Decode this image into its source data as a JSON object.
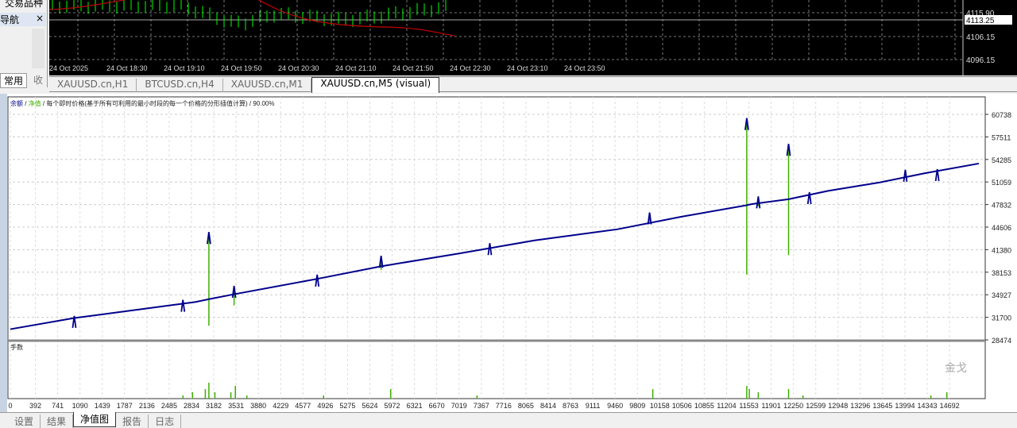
{
  "left_panel": {
    "symbols_title": "交易品种",
    "navigator_title": "导航",
    "close": "×",
    "tab_common": "常用",
    "tab_fav": "收"
  },
  "price_chart": {
    "price_labels": [
      "4115.90",
      "4106.15",
      "4096.15"
    ],
    "current_price": "4113.25",
    "time_labels": [
      "24 Oct 2025",
      "24 Oct 18:30",
      "24 Oct 19:10",
      "24 Oct 19:50",
      "24 Oct 20:30",
      "24 Oct 21:10",
      "24 Oct 21:50",
      "24 Oct 22:30",
      "24 Oct 23:10",
      "24 Oct 23:50"
    ],
    "candle_color": "#00ff00",
    "ma_color": "#c00000"
  },
  "chart_tabs": [
    {
      "label": "XAUUSD.cn,H1"
    },
    {
      "label": "BTCUSD.cn,H4"
    },
    {
      "label": "XAUUSD.cn,M1"
    },
    {
      "label": "XAUUSD.cn,M5 (visual)",
      "active": true
    }
  ],
  "equity_header": {
    "balance": "余额",
    "sep1": " / ",
    "equity": "净值",
    "sep2": " / ",
    "mode": "每个即时价格(基于所有可利用的最小时段的每一个价格的分形插值计算)",
    "sep3": " / ",
    "quality": "90.00%"
  },
  "lots_label": "手数",
  "watermark": "金戈",
  "bottom_tabs": [
    {
      "label": "设置"
    },
    {
      "label": "结果"
    },
    {
      "label": "净值图",
      "active": true
    },
    {
      "label": "报告"
    },
    {
      "label": "日志"
    }
  ],
  "chart_data": {
    "type": "line",
    "xlim": [
      0,
      15250
    ],
    "ylim": [
      28474,
      60738
    ],
    "y_ticks": [
      60738,
      57511,
      54285,
      51059,
      47832,
      44606,
      41380,
      38153,
      34927,
      31700,
      28474
    ],
    "x_ticks": [
      0,
      392,
      741,
      1090,
      1439,
      1787,
      2136,
      2485,
      2834,
      3182,
      3531,
      3880,
      4229,
      4577,
      4926,
      5275,
      5624,
      5972,
      6321,
      6670,
      7019,
      7367,
      7716,
      8065,
      8414,
      8763,
      9111,
      9460,
      9809,
      10158,
      10506,
      10855,
      11204,
      11553,
      11901,
      12250,
      12599,
      12948,
      13296,
      13645,
      13994,
      14343,
      14692
    ],
    "grid": true,
    "balance_color": "#00008b",
    "equity_color": "#3cb000",
    "series": [
      {
        "name": "余额",
        "values": [
          [
            0,
            30000
          ],
          [
            1000,
            31600
          ],
          [
            2000,
            32800
          ],
          [
            2900,
            33900
          ],
          [
            3106,
            34300
          ],
          [
            3500,
            35000
          ],
          [
            4800,
            37200
          ],
          [
            5800,
            39000
          ],
          [
            7000,
            40800
          ],
          [
            8200,
            42700
          ],
          [
            9500,
            44300
          ],
          [
            10500,
            46100
          ],
          [
            11500,
            47700
          ],
          [
            11600,
            47900
          ],
          [
            12174,
            48600
          ],
          [
            12800,
            49800
          ],
          [
            13600,
            51000
          ],
          [
            14300,
            52300
          ],
          [
            15150,
            53700
          ]
        ]
      },
      {
        "name": "净值",
        "spikes": [
          [
            1000,
            31900,
            31400
          ],
          [
            2700,
            34200,
            33500
          ],
          [
            3106,
            43900,
            30500
          ],
          [
            3500,
            36200,
            33400
          ],
          [
            4800,
            37800,
            36900
          ],
          [
            5800,
            40500,
            38500
          ],
          [
            7500,
            42300,
            41700
          ],
          [
            10000,
            46700,
            45400
          ],
          [
            11520,
            60200,
            37800
          ],
          [
            11700,
            49000,
            47600
          ],
          [
            12174,
            56500,
            40600
          ],
          [
            12500,
            49600,
            49100
          ],
          [
            14000,
            52800,
            52200
          ],
          [
            14500,
            52900,
            52300
          ]
        ]
      }
    ],
    "lots": [
      [
        2700,
        1
      ],
      [
        2850,
        2
      ],
      [
        3050,
        3
      ],
      [
        3106,
        5
      ],
      [
        3200,
        2
      ],
      [
        3450,
        2
      ],
      [
        3520,
        4
      ],
      [
        3700,
        1
      ],
      [
        4900,
        1
      ],
      [
        5950,
        3
      ],
      [
        7300,
        1
      ],
      [
        10050,
        3
      ],
      [
        11520,
        4
      ],
      [
        11560,
        3
      ],
      [
        11700,
        2
      ],
      [
        12174,
        3
      ],
      [
        12400,
        1
      ],
      [
        14400,
        1
      ],
      [
        14650,
        2
      ]
    ]
  }
}
